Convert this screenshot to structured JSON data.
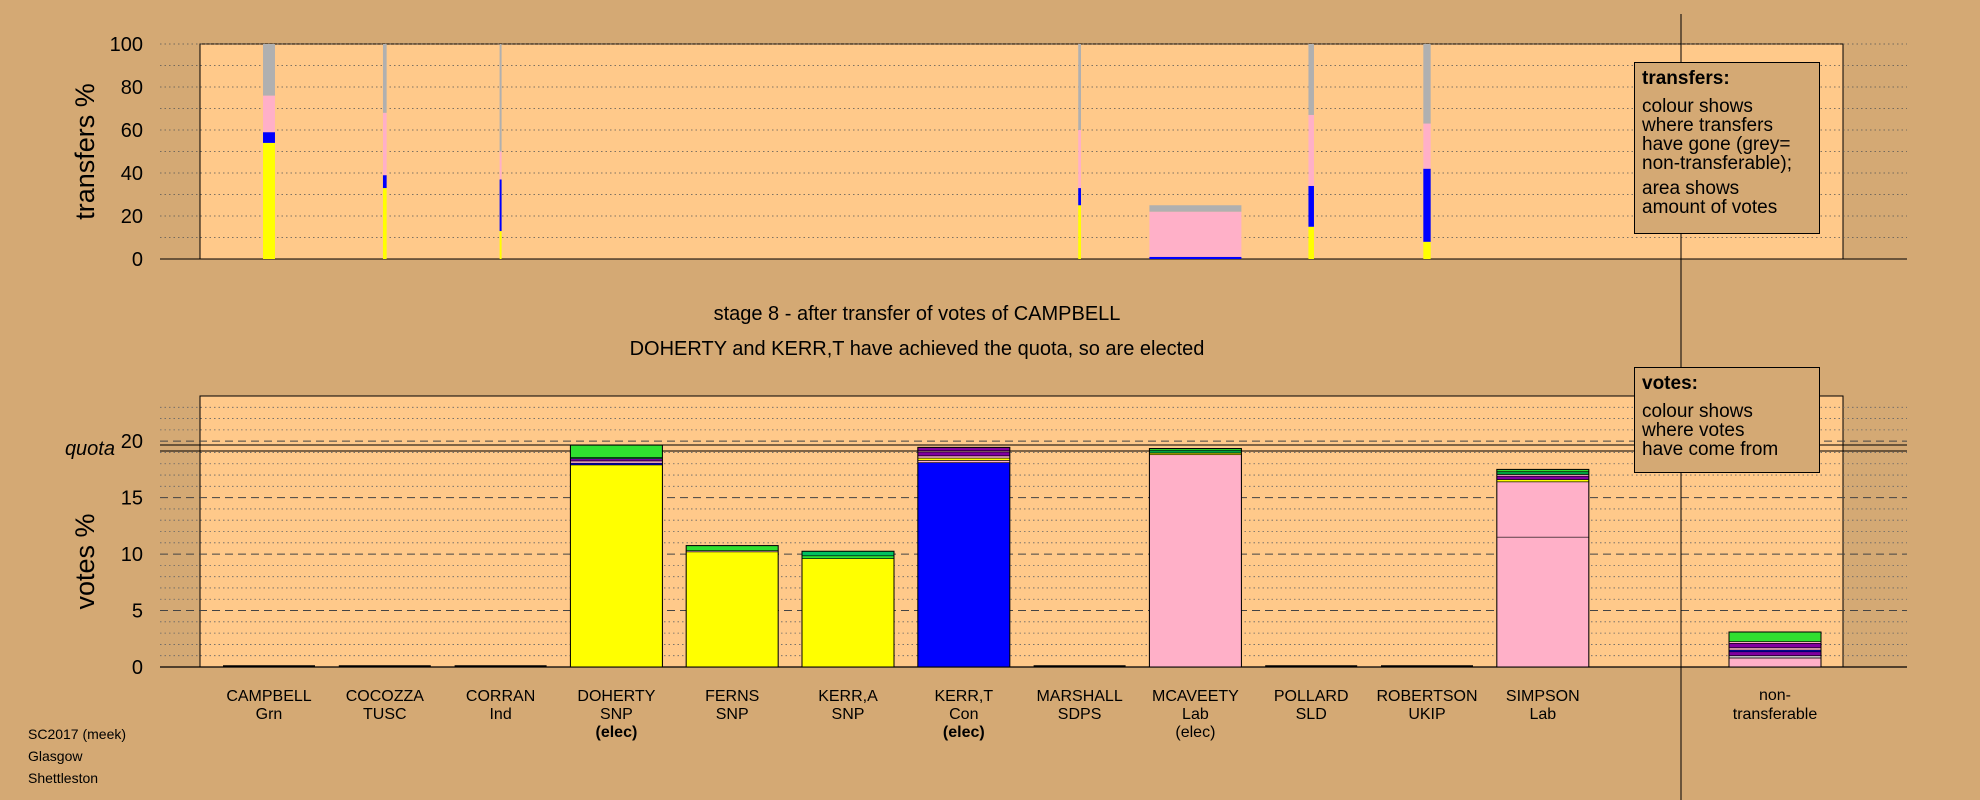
{
  "chart_data": [
    {
      "type": "bar",
      "stacked": true,
      "name_ref": "transfers",
      "ylabel": "transfers %",
      "ylim": [
        0,
        100
      ],
      "yticks": [
        0,
        20,
        40,
        60,
        80,
        100
      ],
      "grid": "dotted horizontal every 10",
      "categories": [
        "CAMPBELL",
        "COCOZZA",
        "CORRAN",
        "DOHERTY",
        "FERNS",
        "KERR,A",
        "KERR,T",
        "MARSHALL",
        "MCAVEETY",
        "POLLARD",
        "ROBERTSON",
        "SIMPSON"
      ],
      "bars": [
        {
          "candidate": "CAMPBELL",
          "width_share": 0.13,
          "segments": [
            {
              "color": "#ffff00",
              "value": 54
            },
            {
              "color": "#0000ff",
              "value": 5
            },
            {
              "color": "#ffb0c8",
              "value": 17
            },
            {
              "color": "#b0b0b0",
              "value": 24
            }
          ]
        },
        {
          "candidate": "COCOZZA",
          "width_share": 0.04,
          "segments": [
            {
              "color": "#ffff00",
              "value": 33
            },
            {
              "color": "#0000ff",
              "value": 6
            },
            {
              "color": "#ffb0c8",
              "value": 29
            },
            {
              "color": "#b0b0b0",
              "value": 32
            }
          ]
        },
        {
          "candidate": "CORRAN",
          "width_share": 0.02,
          "segments": [
            {
              "color": "#ffff00",
              "value": 13
            },
            {
              "color": "#0000ff",
              "value": 24
            },
            {
              "color": "#ffb0c8",
              "value": 13
            },
            {
              "color": "#b0b0b0",
              "value": 50
            }
          ]
        },
        {
          "candidate": "MARSHALL",
          "width_share": 0.03,
          "segments": [
            {
              "color": "#ffff00",
              "value": 25
            },
            {
              "color": "#0000ff",
              "value": 8
            },
            {
              "color": "#ffb0c8",
              "value": 27
            },
            {
              "color": "#b0b0b0",
              "value": 40
            }
          ]
        },
        {
          "candidate": "MCAVEETY",
          "width_share": 1.0,
          "segments": [
            {
              "color": "#0000ff",
              "value": 1
            },
            {
              "color": "#ffb0c8",
              "value": 21
            },
            {
              "color": "#b0b0b0",
              "value": 3
            }
          ]
        },
        {
          "candidate": "POLLARD",
          "width_share": 0.06,
          "segments": [
            {
              "color": "#ffff00",
              "value": 15
            },
            {
              "color": "#0000ff",
              "value": 19
            },
            {
              "color": "#ffb0c8",
              "value": 33
            },
            {
              "color": "#b0b0b0",
              "value": 33
            }
          ]
        },
        {
          "candidate": "ROBERTSON",
          "width_share": 0.08,
          "segments": [
            {
              "color": "#ffff00",
              "value": 8
            },
            {
              "color": "#0000ff",
              "value": 34
            },
            {
              "color": "#ffb0c8",
              "value": 21
            },
            {
              "color": "#b0b0b0",
              "value": 37
            }
          ]
        }
      ]
    },
    {
      "type": "bar",
      "stacked": true,
      "name_ref": "votes",
      "ylabel": "votes %",
      "ylim": [
        0,
        24
      ],
      "yticks": [
        0,
        5,
        10,
        15,
        20
      ],
      "quota": 19.4,
      "quota_label": "quota",
      "grid": "dashed every 5, dotted every 1",
      "categories": [
        "CAMPBELL",
        "COCOZZA",
        "CORRAN",
        "DOHERTY",
        "FERNS",
        "KERR,A",
        "KERR,T",
        "MARSHALL",
        "MCAVEETY",
        "POLLARD",
        "ROBERTSON",
        "SIMPSON",
        "non-transferable"
      ],
      "bars": [
        {
          "candidate": "DOHERTY",
          "segments": [
            {
              "color": "#ffff00",
              "value": 17.9
            },
            {
              "color": "#0000ff",
              "value": 0.15
            },
            {
              "color": "#ffb0c8",
              "value": 0.2
            },
            {
              "color": "#8000a0",
              "value": 0.2
            },
            {
              "color": "#00c060",
              "value": 0.1
            },
            {
              "color": "#30e030",
              "value": 1.1
            }
          ]
        },
        {
          "candidate": "FERNS",
          "segments": [
            {
              "color": "#ffff00",
              "value": 10.2
            },
            {
              "color": "#ffb0c8",
              "value": 0.1
            },
            {
              "color": "#30e030",
              "value": 0.45
            }
          ]
        },
        {
          "candidate": "KERR,A",
          "segments": [
            {
              "color": "#ffff00",
              "value": 9.6
            },
            {
              "color": "#30e030",
              "value": 0.25
            },
            {
              "color": "#00c060",
              "value": 0.4
            }
          ]
        },
        {
          "candidate": "KERR,T",
          "segments": [
            {
              "color": "#0000ff",
              "value": 18.1
            },
            {
              "color": "#ffb0c8",
              "value": 0.2
            },
            {
              "color": "#ffff00",
              "value": 0.2
            },
            {
              "color": "#ffb0c8",
              "value": 0.2
            },
            {
              "color": "#8000a0",
              "value": 0.35
            },
            {
              "color": "#ffb0c8",
              "value": 0.1
            },
            {
              "color": "#8000a0",
              "value": 0.3
            }
          ]
        },
        {
          "candidate": "MCAVEETY",
          "segments": [
            {
              "color": "#ffb0c8",
              "value": 18.8
            },
            {
              "color": "#ffff00",
              "value": 0.15
            },
            {
              "color": "#00a040",
              "value": 0.25
            },
            {
              "color": "#30e030",
              "value": 0.15
            }
          ]
        },
        {
          "candidate": "SIMPSON",
          "segments": [
            {
              "color": "#ffb0c8",
              "value": 11.5
            },
            {
              "color": "#ffb0c8",
              "value": 4.9
            },
            {
              "color": "#ffff00",
              "value": 0.2
            },
            {
              "color": "#8000a0",
              "value": 0.3
            },
            {
              "color": "#ffb0c8",
              "value": 0.15
            },
            {
              "color": "#00a040",
              "value": 0.25
            },
            {
              "color": "#30e030",
              "value": 0.2
            }
          ]
        },
        {
          "candidate": "non-transferable",
          "segments": [
            {
              "color": "#ffb0c8",
              "value": 0.8
            },
            {
              "color": "#c0c0c0",
              "value": 0.2
            },
            {
              "color": "#8000a0",
              "value": 0.35
            },
            {
              "color": "#0000ff",
              "value": 0.15
            },
            {
              "color": "#ffb0c8",
              "value": 0.2
            },
            {
              "color": "#8000a0",
              "value": 0.4
            },
            {
              "color": "#ffb0c8",
              "value": 0.15
            },
            {
              "color": "#30e030",
              "value": 0.85
            }
          ]
        }
      ]
    }
  ],
  "candidates": [
    {
      "name": "CAMPBELL",
      "party": "Grn",
      "status": ""
    },
    {
      "name": "COCOZZA",
      "party": "TUSC",
      "status": ""
    },
    {
      "name": "CORRAN",
      "party": "Ind",
      "status": ""
    },
    {
      "name": "DOHERTY",
      "party": "SNP",
      "status": "(elec)",
      "status_bold": true
    },
    {
      "name": "FERNS",
      "party": "SNP",
      "status": ""
    },
    {
      "name": "KERR,A",
      "party": "SNP",
      "status": ""
    },
    {
      "name": "KERR,T",
      "party": "Con",
      "status": "(elec)",
      "status_bold": true
    },
    {
      "name": "MARSHALL",
      "party": "SDPS",
      "status": ""
    },
    {
      "name": "MCAVEETY",
      "party": "Lab",
      "status": "(elec)",
      "status_bold": false
    },
    {
      "name": "POLLARD",
      "party": "SLD",
      "status": ""
    },
    {
      "name": "ROBERTSON",
      "party": "UKIP",
      "status": ""
    },
    {
      "name": "SIMPSON",
      "party": "Lab",
      "status": ""
    }
  ],
  "nontransferable_label": [
    "non-",
    "transferable"
  ],
  "caption": {
    "line1": "stage 8 - after transfer of votes of CAMPBELL",
    "line2": "DOHERTY and KERR,T have achieved the quota, so are elected"
  },
  "legend_transfers": {
    "title": "transfers:",
    "lines": [
      "colour shows",
      "where transfers",
      "have gone (grey=",
      "non-transferable);"
    ],
    "lines2": [
      "area shows",
      "amount of votes"
    ]
  },
  "legend_votes": {
    "title": "votes:",
    "lines": [
      "colour shows",
      "where votes",
      "have come from"
    ]
  },
  "footer": [
    "SC2017 (meek)",
    "Glasgow",
    "Shettleston"
  ],
  "colors": {
    "background": "#d4a974",
    "plot": "#ffc98a"
  }
}
